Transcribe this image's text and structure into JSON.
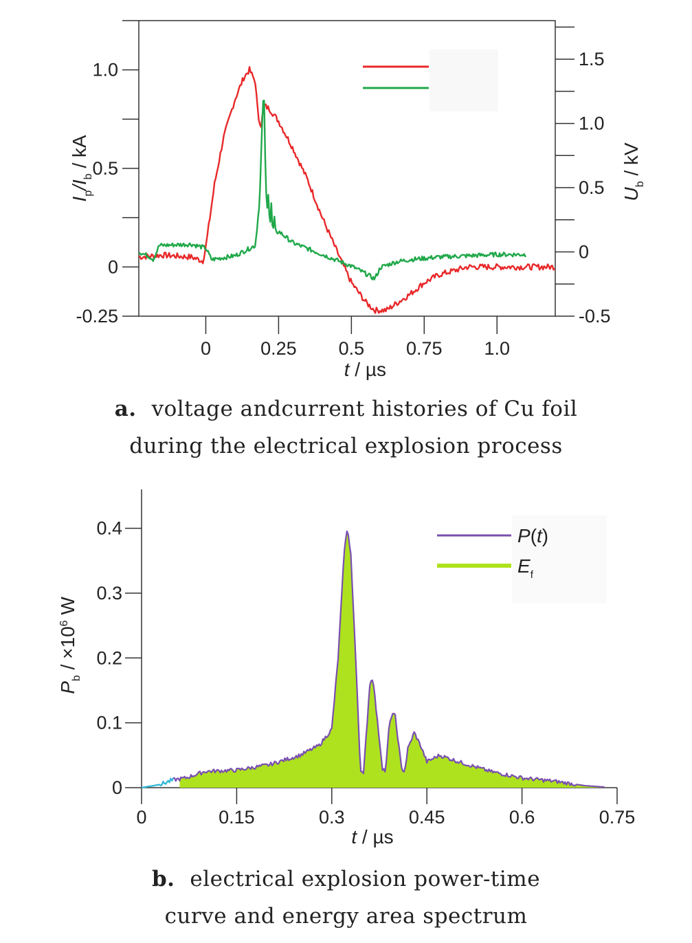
{
  "panel_a": {
    "caption_letter": "a.",
    "caption_line1": "voltage andcurrent histories of Cu foil",
    "caption_line2": "during the electrical explosion process"
  },
  "panel_b": {
    "caption_letter": "b.",
    "caption_line1": "electrical explosion power-time",
    "caption_line2": "curve and energy area spectrum"
  },
  "colors": {
    "current": "#e8282a",
    "voltage": "#20a84a",
    "power_line": "#7a4fb0",
    "energy_fill": "#aee21e",
    "early_segment": "#35b8d8"
  },
  "chart_data": [
    {
      "type": "line",
      "title": "",
      "xlabel": "t / µs",
      "ylabel": "Ip/Ib / kA",
      "y2label": "Ub / kV",
      "xlim": [
        -0.23,
        1.2
      ],
      "ylim": [
        -0.25,
        1.25
      ],
      "y2lim": [
        -0.5,
        1.8
      ],
      "x_ticks": [
        "0",
        "0.25",
        "0.5",
        "0.75",
        "1.0"
      ],
      "y_ticks": [
        "-0.25",
        "0",
        "0.5",
        "1.0"
      ],
      "y2_ticks": [
        "-0.5",
        "0",
        "0.5",
        "1.0",
        "1.5"
      ],
      "legend_position": "top-right",
      "series": [
        {
          "axis": "left",
          "x": [
            -0.23,
            -0.15,
            -0.05,
            -0.01,
            0.0,
            0.03,
            0.06,
            0.1,
            0.13,
            0.15,
            0.17,
            0.18,
            0.19,
            0.2,
            0.22,
            0.25,
            0.3,
            0.35,
            0.4,
            0.45,
            0.5,
            0.55,
            0.58,
            0.62,
            0.66,
            0.7,
            0.75,
            0.8,
            0.85,
            0.9,
            0.95,
            1.0,
            1.1,
            1.2
          ],
          "values": [
            0.05,
            0.06,
            0.05,
            0.03,
            0.1,
            0.42,
            0.65,
            0.85,
            0.96,
            1.0,
            0.94,
            0.76,
            0.72,
            0.82,
            0.8,
            0.74,
            0.6,
            0.44,
            0.25,
            0.08,
            -0.08,
            -0.18,
            -0.22,
            -0.22,
            -0.18,
            -0.14,
            -0.08,
            -0.04,
            -0.02,
            0.0,
            0.0,
            0.0,
            0.0,
            0.0
          ]
        },
        {
          "axis": "right",
          "x": [
            -0.23,
            -0.19,
            -0.18,
            -0.16,
            -0.05,
            0.0,
            0.02,
            0.1,
            0.17,
            0.185,
            0.195,
            0.2,
            0.205,
            0.21,
            0.215,
            0.22,
            0.225,
            0.23,
            0.235,
            0.24,
            0.25,
            0.3,
            0.4,
            0.5,
            0.55,
            0.58,
            0.6,
            0.65,
            0.7,
            0.8,
            0.9,
            1.0,
            1.1
          ],
          "values": [
            0.0,
            -0.04,
            -0.06,
            0.05,
            0.06,
            0.03,
            -0.06,
            -0.03,
            0.05,
            0.4,
            1.1,
            1.25,
            0.6,
            0.3,
            0.48,
            0.18,
            0.38,
            0.12,
            0.28,
            0.14,
            0.16,
            0.07,
            -0.02,
            -0.11,
            -0.17,
            -0.21,
            -0.12,
            -0.08,
            -0.06,
            -0.04,
            -0.03,
            -0.02,
            -0.02
          ]
        }
      ]
    },
    {
      "type": "area",
      "title": "",
      "xlabel": "t / µs",
      "ylabel": "Pb / ×10⁶ W",
      "xlim": [
        0,
        0.75
      ],
      "ylim": [
        0,
        0.46
      ],
      "x_ticks": [
        "0",
        "0.15",
        "0.3",
        "0.45",
        "0.6",
        "0.75"
      ],
      "y_ticks": [
        "0",
        "0.1",
        "0.2",
        "0.3",
        "0.4"
      ],
      "legend_position": "top-right",
      "series": [
        {
          "name": "P(t)",
          "x": [
            0,
            0.03,
            0.05,
            0.07,
            0.1,
            0.15,
            0.2,
            0.25,
            0.28,
            0.3,
            0.31,
            0.32,
            0.325,
            0.33,
            0.34,
            0.345,
            0.35,
            0.36,
            0.365,
            0.37,
            0.38,
            0.385,
            0.39,
            0.395,
            0.4,
            0.41,
            0.415,
            0.42,
            0.43,
            0.44,
            0.45,
            0.46,
            0.47,
            0.5,
            0.55,
            0.6,
            0.65,
            0.7,
            0.73
          ],
          "values": [
            0.0,
            0.005,
            0.012,
            0.015,
            0.025,
            0.027,
            0.035,
            0.05,
            0.065,
            0.09,
            0.2,
            0.37,
            0.4,
            0.36,
            0.15,
            0.03,
            0.02,
            0.16,
            0.17,
            0.12,
            0.03,
            0.025,
            0.09,
            0.115,
            0.11,
            0.03,
            0.025,
            0.06,
            0.085,
            0.065,
            0.04,
            0.045,
            0.05,
            0.04,
            0.025,
            0.015,
            0.01,
            0.003,
            0.001
          ]
        },
        {
          "name": "Ef",
          "x": [
            0.06,
            0.73
          ],
          "values": [
            0.0,
            0.0
          ]
        }
      ]
    }
  ],
  "legend_a": {
    "label_current": "",
    "label_voltage": ""
  },
  "axes_text": {
    "a_ylabel_main": "I",
    "a_ylabel_sub1": "p",
    "a_ylabel_mid": "/I",
    "a_ylabel_sub2": "b",
    "a_ylabel_unit": " / kA",
    "a_y2label_main": "U",
    "a_y2label_sub": "b",
    "a_y2label_unit": " / kV",
    "xlabel_t": "t",
    "xlabel_unit": " / µs",
    "b_ylabel_main": "P",
    "b_ylabel_sub": "b",
    "b_ylabel_unit": " / ×10",
    "b_ylabel_sup": "6",
    "b_ylabel_w": " W",
    "b_legend_p": "P",
    "b_legend_p_arg": "t",
    "b_legend_e": "E",
    "b_legend_e_sub": "f"
  }
}
